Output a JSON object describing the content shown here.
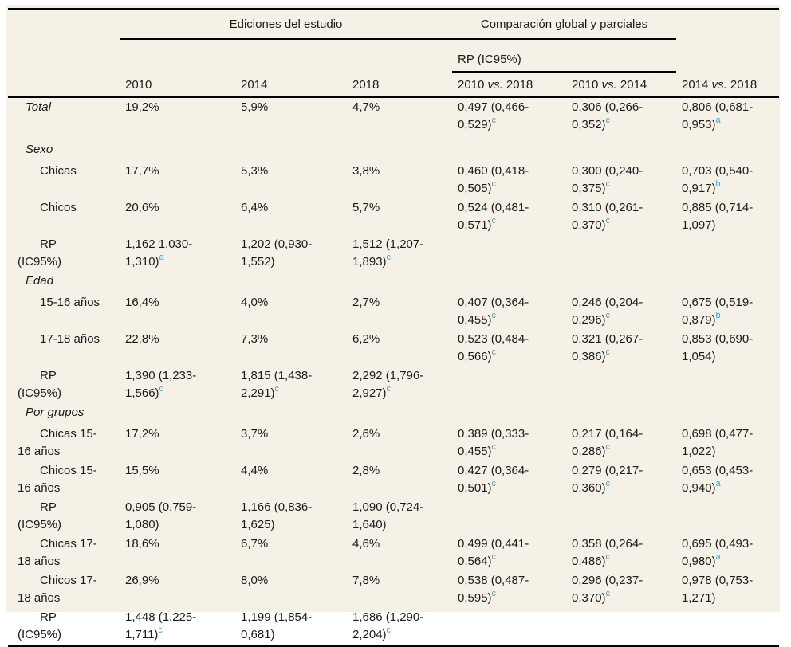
{
  "colors": {
    "panel_background": "#F6F1E6",
    "rule": "#000000",
    "text": "#1b1b1b",
    "footnote_superscript": "#3FA1D8"
  },
  "table": {
    "group_headers": [
      "Ediciones del estudio",
      "Comparación global y parciales"
    ],
    "subgroup_header": "RP (IC95%)",
    "columns": [
      "",
      "2010",
      "2014",
      "2018",
      "2010 vs. 2018",
      "2010 vs. 2014",
      "2014 vs. 2018"
    ],
    "rows": [
      {
        "style": "section-data",
        "label": "Total",
        "cells": [
          "19,2%",
          "5,9%",
          "4,7%",
          "0,497 (0,466-\n0,529)^c",
          "0,306 (0,266-\n0,352)^c",
          "0,806 (0,681-\n0,953)^a"
        ]
      },
      {
        "style": "section",
        "label": "Sexo",
        "cells": [
          "",
          "",
          "",
          "",
          "",
          ""
        ]
      },
      {
        "style": "item",
        "label": "Chicas",
        "cells": [
          "17,7%",
          "5,3%",
          "3,8%",
          "0,460 (0,418-\n0,505)^c",
          "0,300 (0,240-\n0,375)^c",
          "0,703 (0,540-\n0,917)^b"
        ]
      },
      {
        "style": "item",
        "label": "Chicos",
        "cells": [
          "20,6%",
          "6,4%",
          "5,7%",
          "0,524 (0,481-\n0,571)^c",
          "0,310 (0,261-\n0,370)^c",
          "0,885 (0,714-\n1,097)"
        ]
      },
      {
        "style": "rp",
        "label": "RP\n(IC95%)",
        "cells": [
          "1,162 1,030-\n1,310)^a",
          "1,202 (0,930-\n1,552)",
          "1,512 (1,207-\n1,893)^c",
          "",
          "",
          ""
        ]
      },
      {
        "style": "section",
        "label": "Edad",
        "cells": [
          "",
          "",
          "",
          "",
          "",
          ""
        ]
      },
      {
        "style": "item",
        "label": "15-16 años",
        "cells": [
          "16,4%",
          "4,0%",
          "2,7%",
          "0,407 (0,364-\n0,455)^c",
          "0,246 (0,204-\n0,296)^c",
          "0,675 (0,519-\n0,879)^b"
        ]
      },
      {
        "style": "item",
        "label": "17-18 años",
        "cells": [
          "22,8%",
          "7,3%",
          "6,2%",
          "0,523 (0,484-\n0,566)^c",
          "0,321 (0,267-\n0,386)^c",
          "0,853 (0,690-\n1,054)"
        ]
      },
      {
        "style": "rp",
        "label": "RP\n(IC95%)",
        "cells": [
          "1,390 (1,233-\n1,566)^c",
          "1,815 (1,438-\n2,291)^c",
          "2,292 (1,796-\n2,927)^c",
          "",
          "",
          ""
        ]
      },
      {
        "style": "section",
        "label": "Por grupos",
        "cells": [
          "",
          "",
          "",
          "",
          "",
          ""
        ]
      },
      {
        "style": "item",
        "label": "Chicas 15-\n16 años",
        "cells": [
          "17,2%",
          "3,7%",
          "2,6%",
          "0,389 (0,333-\n0,455)^c",
          "0,217 (0,164-\n0,286)^c",
          "0,698 (0,477-\n1,022)"
        ]
      },
      {
        "style": "item",
        "label": "Chicos 15-\n16 años",
        "cells": [
          "15,5%",
          "4,4%",
          "2,8%",
          "0,427 (0,364-\n0,501)^c",
          "0,279 (0,217-\n0,360)^c",
          "0,653 (0,453-\n0,940)^a"
        ]
      },
      {
        "style": "rp",
        "label": "RP\n(IC95%)",
        "cells": [
          "0,905 (0,759-\n1,080)",
          "1,166 (0,836-\n1,625)",
          "1,090 (0,724-\n1,640)",
          "",
          "",
          ""
        ]
      },
      {
        "style": "item",
        "label": "Chicas 17-\n18 años",
        "cells": [
          "18,6%",
          "6,7%",
          "4,6%",
          "0,499 (0,441-\n0,564)^c",
          "0,358 (0,264-\n0,486)^c",
          "0,695 (0,493-\n0,980)^a"
        ]
      },
      {
        "style": "item",
        "label": "Chicos 17-\n18 años",
        "cells": [
          "26,9%",
          "8,0%",
          "7,8%",
          "0,538 (0,487-\n0,595)^c",
          "0,296 (0,237-\n0,370)^c",
          "0,978 (0,753-\n1,271)"
        ]
      },
      {
        "style": "rp",
        "label": "RP\n(IC95%)",
        "cells": [
          "1,448 (1,225-\n1,711)^c",
          "1,199 (1,854-\n0,681)",
          "1,686 (1,290-\n2,204)^c",
          "",
          "",
          ""
        ]
      }
    ]
  }
}
